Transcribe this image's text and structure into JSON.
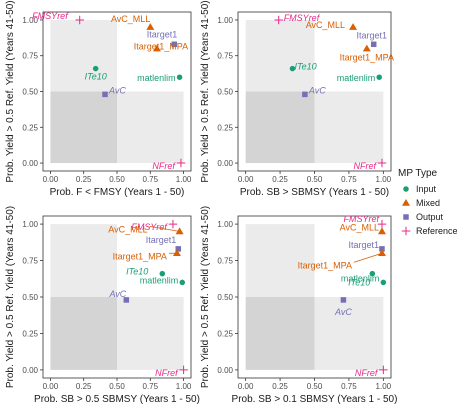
{
  "legend": {
    "title": "MP Type",
    "entries": [
      {
        "name": "Input",
        "color": "#1b9e77",
        "shape": "circle"
      },
      {
        "name": "Mixed",
        "color": "#d95f02",
        "shape": "triangle"
      },
      {
        "name": "Output",
        "color": "#7570b3",
        "shape": "square"
      },
      {
        "name": "Reference",
        "color": "#e7298a",
        "shape": "plus"
      }
    ]
  },
  "chart_data": [
    {
      "type": "scatter",
      "xlabel": "Prob. F < FMSY (Years 1 - 50)",
      "ylabel": "Prob. Yield > 0.5 Ref. Yield (Years 41-50)",
      "xlim": [
        0,
        1
      ],
      "ylim": [
        0,
        1
      ],
      "x_ticks": [
        "0.00",
        "0.25",
        "0.50",
        "0.75",
        "1.00"
      ],
      "y_ticks": [
        "0.00",
        "0.25",
        "0.50",
        "0.75",
        "1.00"
      ],
      "threshold_x": 0.5,
      "threshold_y": 0.5,
      "points": [
        {
          "name": "FMSYref",
          "type": "Reference",
          "x": 0.22,
          "y": 1.0
        },
        {
          "name": "AvC_MLL",
          "type": "Mixed",
          "x": 0.75,
          "y": 0.95
        },
        {
          "name": "Itarget1",
          "type": "Output",
          "x": 0.93,
          "y": 0.83
        },
        {
          "name": "Itarget1_MPA",
          "type": "Mixed",
          "x": 0.8,
          "y": 0.8
        },
        {
          "name": "ITe10",
          "type": "Input",
          "x": 0.34,
          "y": 0.66
        },
        {
          "name": "matlenlim",
          "type": "Input",
          "x": 0.97,
          "y": 0.6
        },
        {
          "name": "AvC",
          "type": "Output",
          "x": 0.41,
          "y": 0.48
        },
        {
          "name": "NFref",
          "type": "Reference",
          "x": 0.98,
          "y": 0.0
        }
      ]
    },
    {
      "type": "scatter",
      "xlabel": "Prob. SB > SBMSY (Years 1 - 50)",
      "ylabel": "Prob. Yield > 0.5 Ref. Yield (Years 41-50)",
      "xlim": [
        0,
        1
      ],
      "ylim": [
        0,
        1
      ],
      "x_ticks": [
        "0.00",
        "0.25",
        "0.50",
        "0.75",
        "1.00"
      ],
      "y_ticks": [
        "0.00",
        "0.25",
        "0.50",
        "0.75",
        "1.00"
      ],
      "threshold_x": 0.5,
      "threshold_y": 0.5,
      "points": [
        {
          "name": "FMSYref",
          "type": "Reference",
          "x": 0.24,
          "y": 1.0
        },
        {
          "name": "AvC_MLL",
          "type": "Mixed",
          "x": 0.78,
          "y": 0.95
        },
        {
          "name": "Itarget1",
          "type": "Output",
          "x": 0.93,
          "y": 0.83
        },
        {
          "name": "Itarget1_MPA",
          "type": "Mixed",
          "x": 0.88,
          "y": 0.8
        },
        {
          "name": "ITe10",
          "type": "Input",
          "x": 0.34,
          "y": 0.66
        },
        {
          "name": "matlenlim",
          "type": "Input",
          "x": 0.97,
          "y": 0.6
        },
        {
          "name": "AvC",
          "type": "Output",
          "x": 0.43,
          "y": 0.48
        },
        {
          "name": "NFref",
          "type": "Reference",
          "x": 0.99,
          "y": 0.0
        }
      ]
    },
    {
      "type": "scatter",
      "xlabel": "Prob. SB > 0.5 SBMSY (Years 1 - 50)",
      "ylabel": "Prob. Yield > 0.5 Ref. Yield (Years 41-50)",
      "xlim": [
        0,
        1
      ],
      "ylim": [
        0,
        1
      ],
      "x_ticks": [
        "0.00",
        "0.25",
        "0.50",
        "0.75",
        "1.00"
      ],
      "y_ticks": [
        "0.00",
        "0.25",
        "0.50",
        "0.75",
        "1.00"
      ],
      "threshold_x": 0.5,
      "threshold_y": 0.5,
      "points": [
        {
          "name": "FMSYref",
          "type": "Reference",
          "x": 0.92,
          "y": 1.0
        },
        {
          "name": "AvC_MLL",
          "type": "Mixed",
          "x": 0.97,
          "y": 0.95
        },
        {
          "name": "Itarget1",
          "type": "Output",
          "x": 0.96,
          "y": 0.83
        },
        {
          "name": "Itarget1_MPA",
          "type": "Mixed",
          "x": 0.95,
          "y": 0.8
        },
        {
          "name": "ITe10",
          "type": "Input",
          "x": 0.84,
          "y": 0.66
        },
        {
          "name": "matlenlim",
          "type": "Input",
          "x": 0.99,
          "y": 0.6
        },
        {
          "name": "AvC",
          "type": "Output",
          "x": 0.57,
          "y": 0.48
        },
        {
          "name": "NFref",
          "type": "Reference",
          "x": 1.0,
          "y": 0.0
        }
      ]
    },
    {
      "type": "scatter",
      "xlabel": "Prob. SB > 0.1 SBMSY (Years 1 - 50)",
      "ylabel": "Prob. Yield > 0.5 Ref. Yield (Years 41-50)",
      "xlim": [
        0,
        1
      ],
      "ylim": [
        0,
        1
      ],
      "x_ticks": [
        "0.00",
        "0.25",
        "0.50",
        "0.75",
        "1.00"
      ],
      "y_ticks": [
        "0.00",
        "0.25",
        "0.50",
        "0.75",
        "1.00"
      ],
      "threshold_x": 0.5,
      "threshold_y": 0.5,
      "points": [
        {
          "name": "FMSYref",
          "type": "Reference",
          "x": 0.99,
          "y": 1.0
        },
        {
          "name": "AvC_MLL",
          "type": "Mixed",
          "x": 0.99,
          "y": 0.95
        },
        {
          "name": "Itarget1",
          "type": "Output",
          "x": 0.99,
          "y": 0.83
        },
        {
          "name": "Itarget1_MPA",
          "type": "Mixed",
          "x": 0.99,
          "y": 0.8
        },
        {
          "name": "ITe10",
          "type": "Input",
          "x": 0.92,
          "y": 0.66
        },
        {
          "name": "matlenlim",
          "type": "Input",
          "x": 1.0,
          "y": 0.6
        },
        {
          "name": "AvC",
          "type": "Output",
          "x": 0.71,
          "y": 0.48
        },
        {
          "name": "NFref",
          "type": "Reference",
          "x": 1.0,
          "y": 0.0
        }
      ]
    }
  ]
}
